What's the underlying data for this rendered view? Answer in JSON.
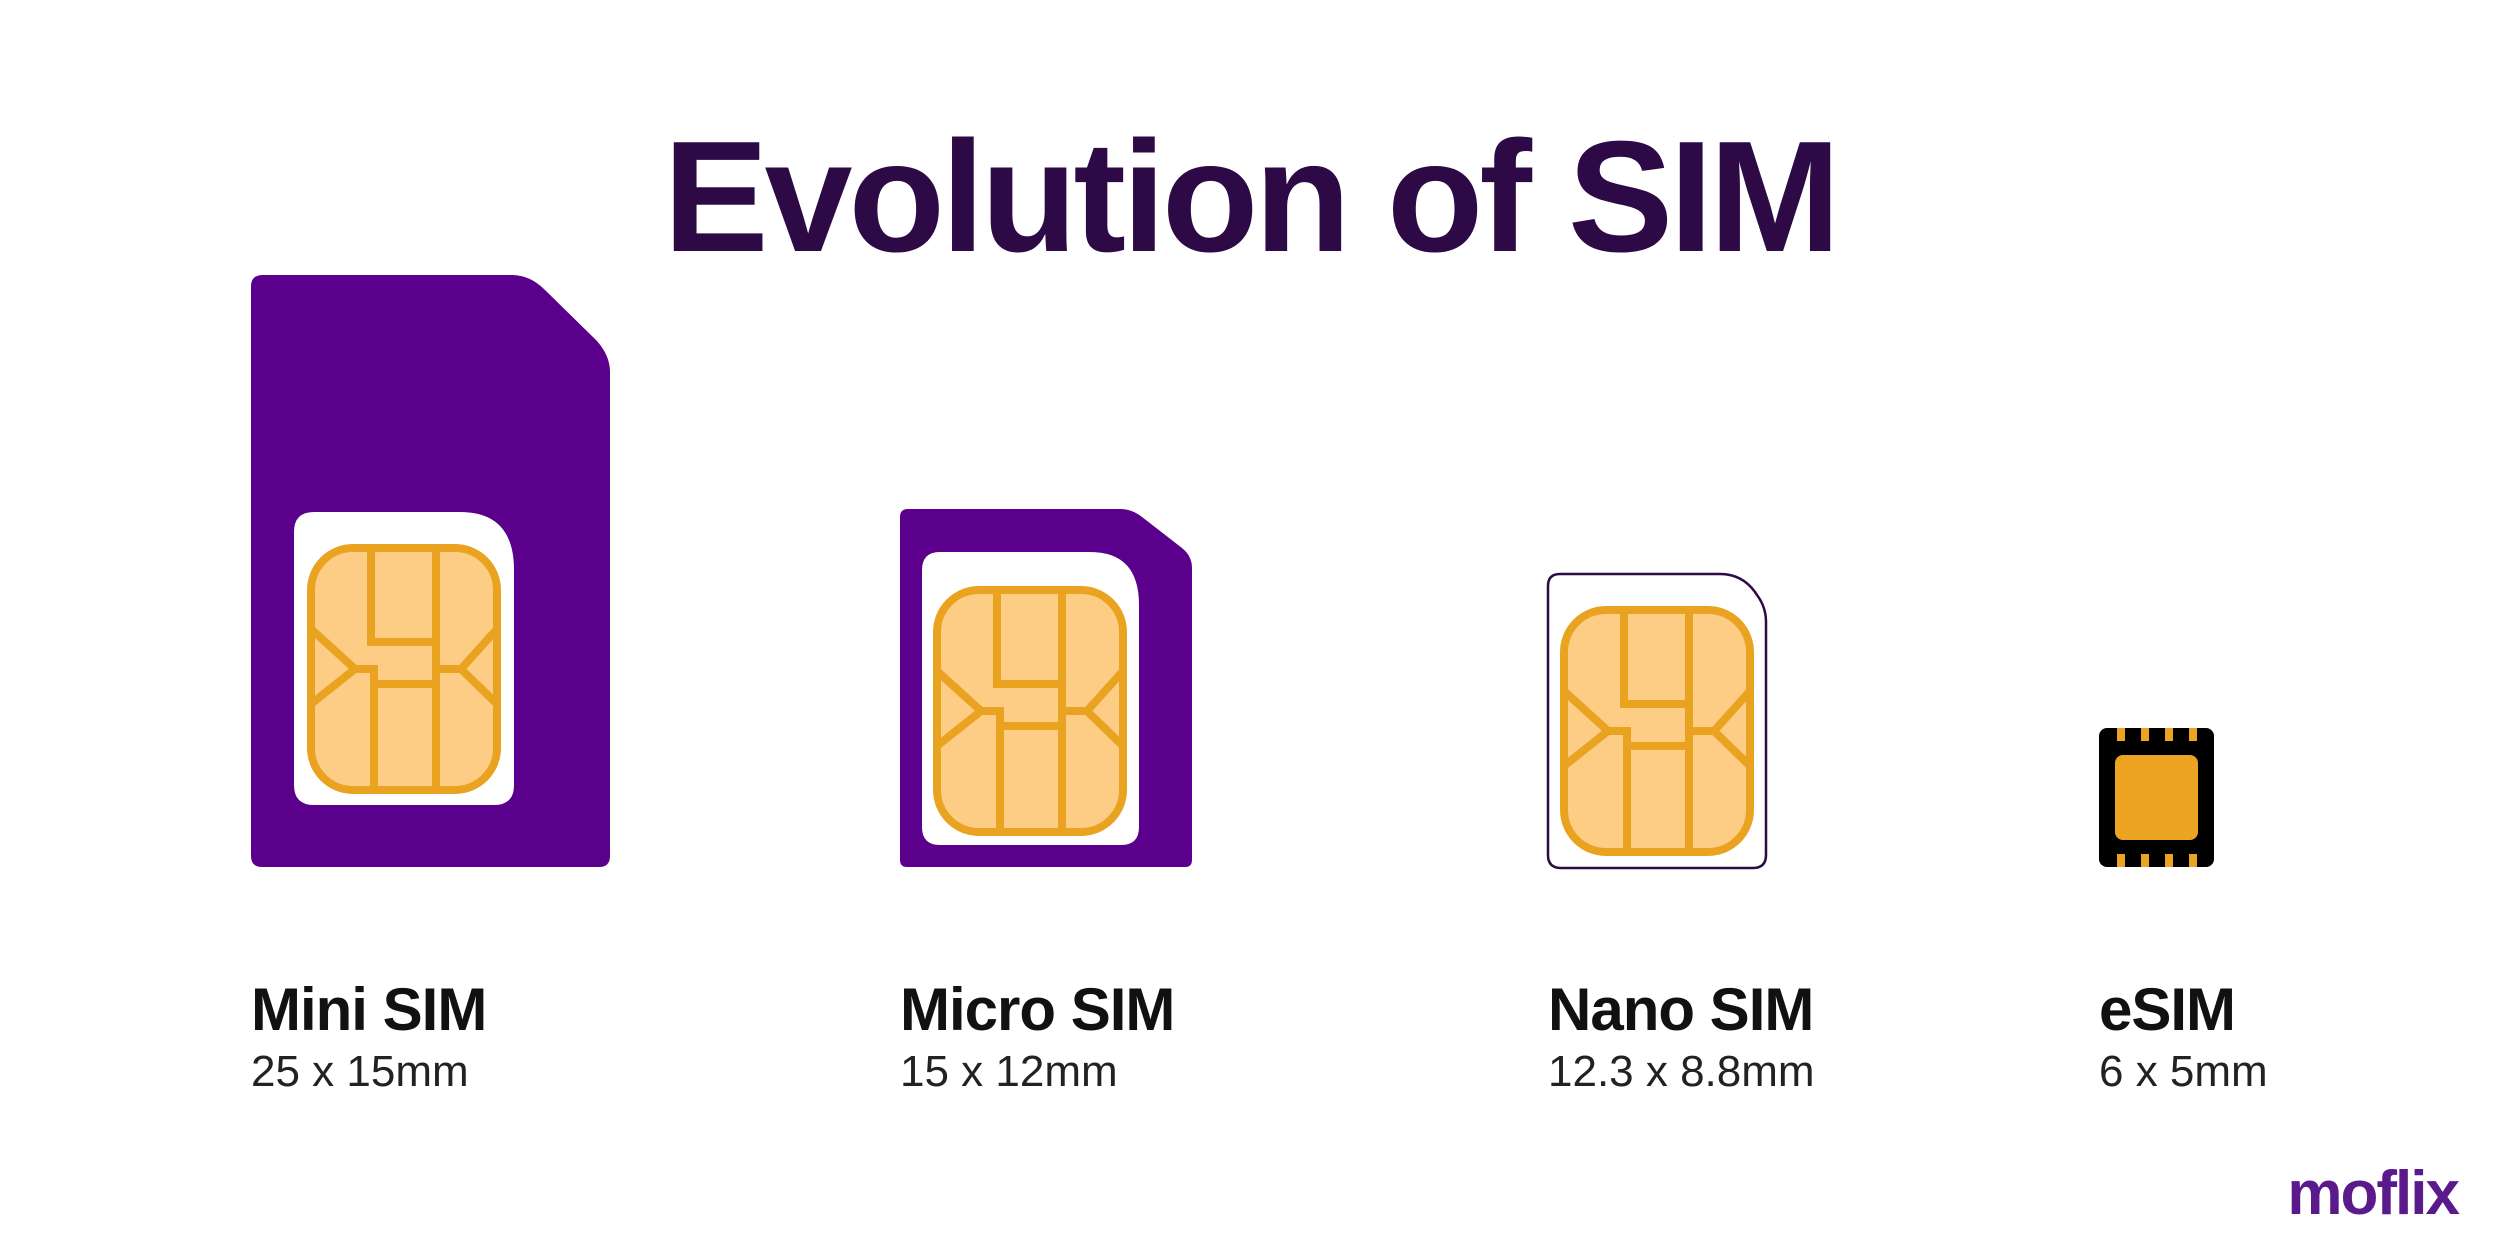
{
  "title": "Evolution of SIM",
  "colors": {
    "title": "#2d0a45",
    "card": "#5a008c",
    "chip_fill": "#fdcd85",
    "chip_line": "#e9a321",
    "esim_body": "#000000",
    "logo": "#5a1a8c"
  },
  "sims": [
    {
      "name": "Mini SIM",
      "size": "25 x 15mm"
    },
    {
      "name": "Micro SIM",
      "size": "15 x 12mm"
    },
    {
      "name": "Nano SIM",
      "size": "12.3 x 8.8mm"
    },
    {
      "name": "eSIM",
      "size": "6 x 5mm"
    }
  ],
  "logo": "moflix"
}
